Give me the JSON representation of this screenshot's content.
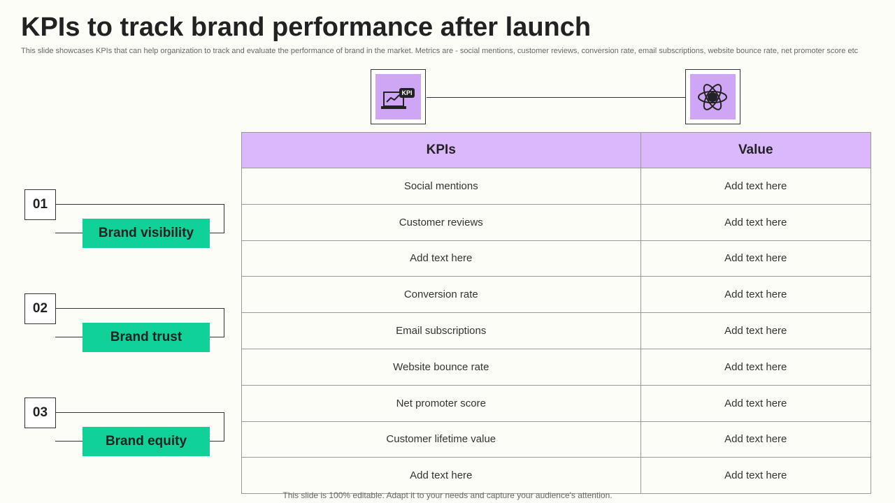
{
  "header": {
    "title": "KPIs to track brand performance after launch",
    "subtitle": "This slide showcases KPIs that can help organization to track and evaluate the performance of brand in the market. Metrics are -  social mentions, customer reviews, conversion rate, email subscriptions, website bounce rate, net promoter score etc"
  },
  "icons": {
    "left": "KPI"
  },
  "sections": [
    {
      "number": "01",
      "label": "Brand visibility"
    },
    {
      "number": "02",
      "label": "Brand trust"
    },
    {
      "number": "03",
      "label": "Brand equity"
    }
  ],
  "table": {
    "columns": [
      "KPIs",
      "Value"
    ],
    "rows": [
      [
        "Social mentions",
        "Add text here"
      ],
      [
        "Customer reviews",
        "Add text here"
      ],
      [
        "Add text here",
        "Add text here"
      ],
      [
        "Conversion rate",
        "Add text here"
      ],
      [
        "Email subscriptions",
        "Add text here"
      ],
      [
        "Website bounce rate",
        "Add text here"
      ],
      [
        "Net promoter score",
        "Add text here"
      ],
      [
        "Customer lifetime value",
        "Add text here"
      ],
      [
        "Add text here",
        "Add text here"
      ]
    ]
  },
  "footer": "This slide is 100% editable. Adapt it to your needs and capture your audience's attention."
}
